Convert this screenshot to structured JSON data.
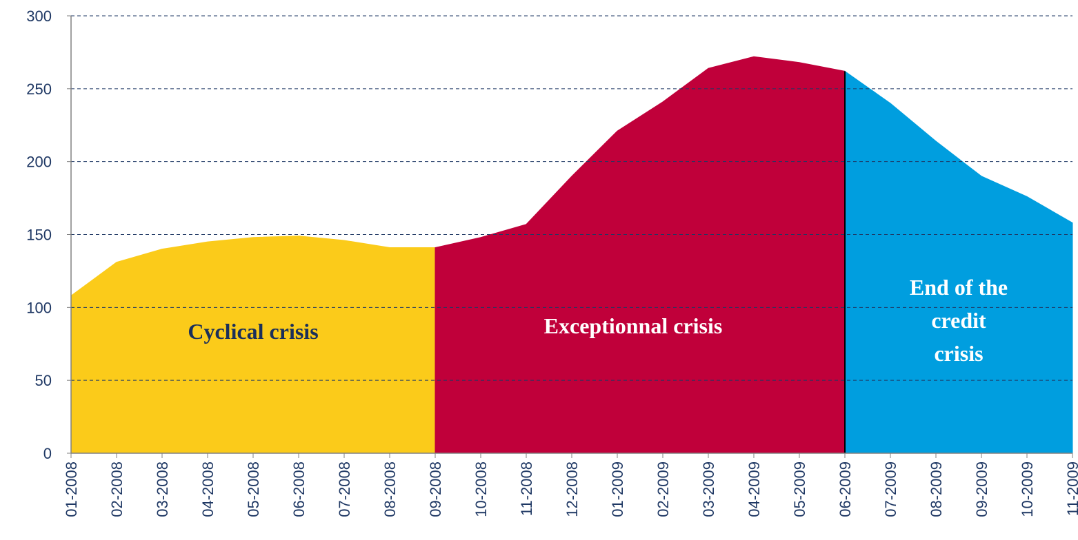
{
  "chart_data": {
    "type": "area",
    "categories": [
      "01-2008",
      "02-2008",
      "03-2008",
      "04-2008",
      "05-2008",
      "06-2008",
      "07-2008",
      "08-2008",
      "09-2008",
      "10-2008",
      "11-2008",
      "12-2008",
      "01-2009",
      "02-2009",
      "03-2009",
      "04-2009",
      "05-2009",
      "06-2009",
      "07-2009",
      "08-2009",
      "09-2009",
      "10-2009",
      "11-2009"
    ],
    "series": [
      {
        "label": [
          "Cyclical crisis"
        ],
        "color": "#fbcb1a",
        "label_color": "#1a2f5a",
        "values": [
          108,
          131,
          140,
          145,
          148,
          149,
          146,
          141,
          141,
          null,
          null,
          null,
          null,
          null,
          null,
          null,
          null,
          null,
          null,
          null,
          null,
          null,
          null
        ]
      },
      {
        "label": [
          "Exceptionnal crisis"
        ],
        "color": "#c0003a",
        "label_color": "#ffffff",
        "values": [
          null,
          null,
          null,
          null,
          null,
          null,
          null,
          null,
          141,
          148,
          157,
          190,
          221,
          241,
          264,
          272,
          268,
          262,
          null,
          null,
          null,
          null,
          null
        ]
      },
      {
        "label": [
          "End of the",
          "credit",
          "crisis"
        ],
        "color": "#009edf",
        "label_color": "#ffffff",
        "values": [
          null,
          null,
          null,
          null,
          null,
          null,
          null,
          null,
          null,
          null,
          null,
          null,
          null,
          null,
          null,
          null,
          null,
          262,
          240,
          214,
          190,
          176,
          158
        ]
      }
    ],
    "ylim": [
      0,
      300
    ],
    "yticks": [
      0,
      50,
      100,
      150,
      200,
      250,
      300
    ],
    "grid": true
  }
}
